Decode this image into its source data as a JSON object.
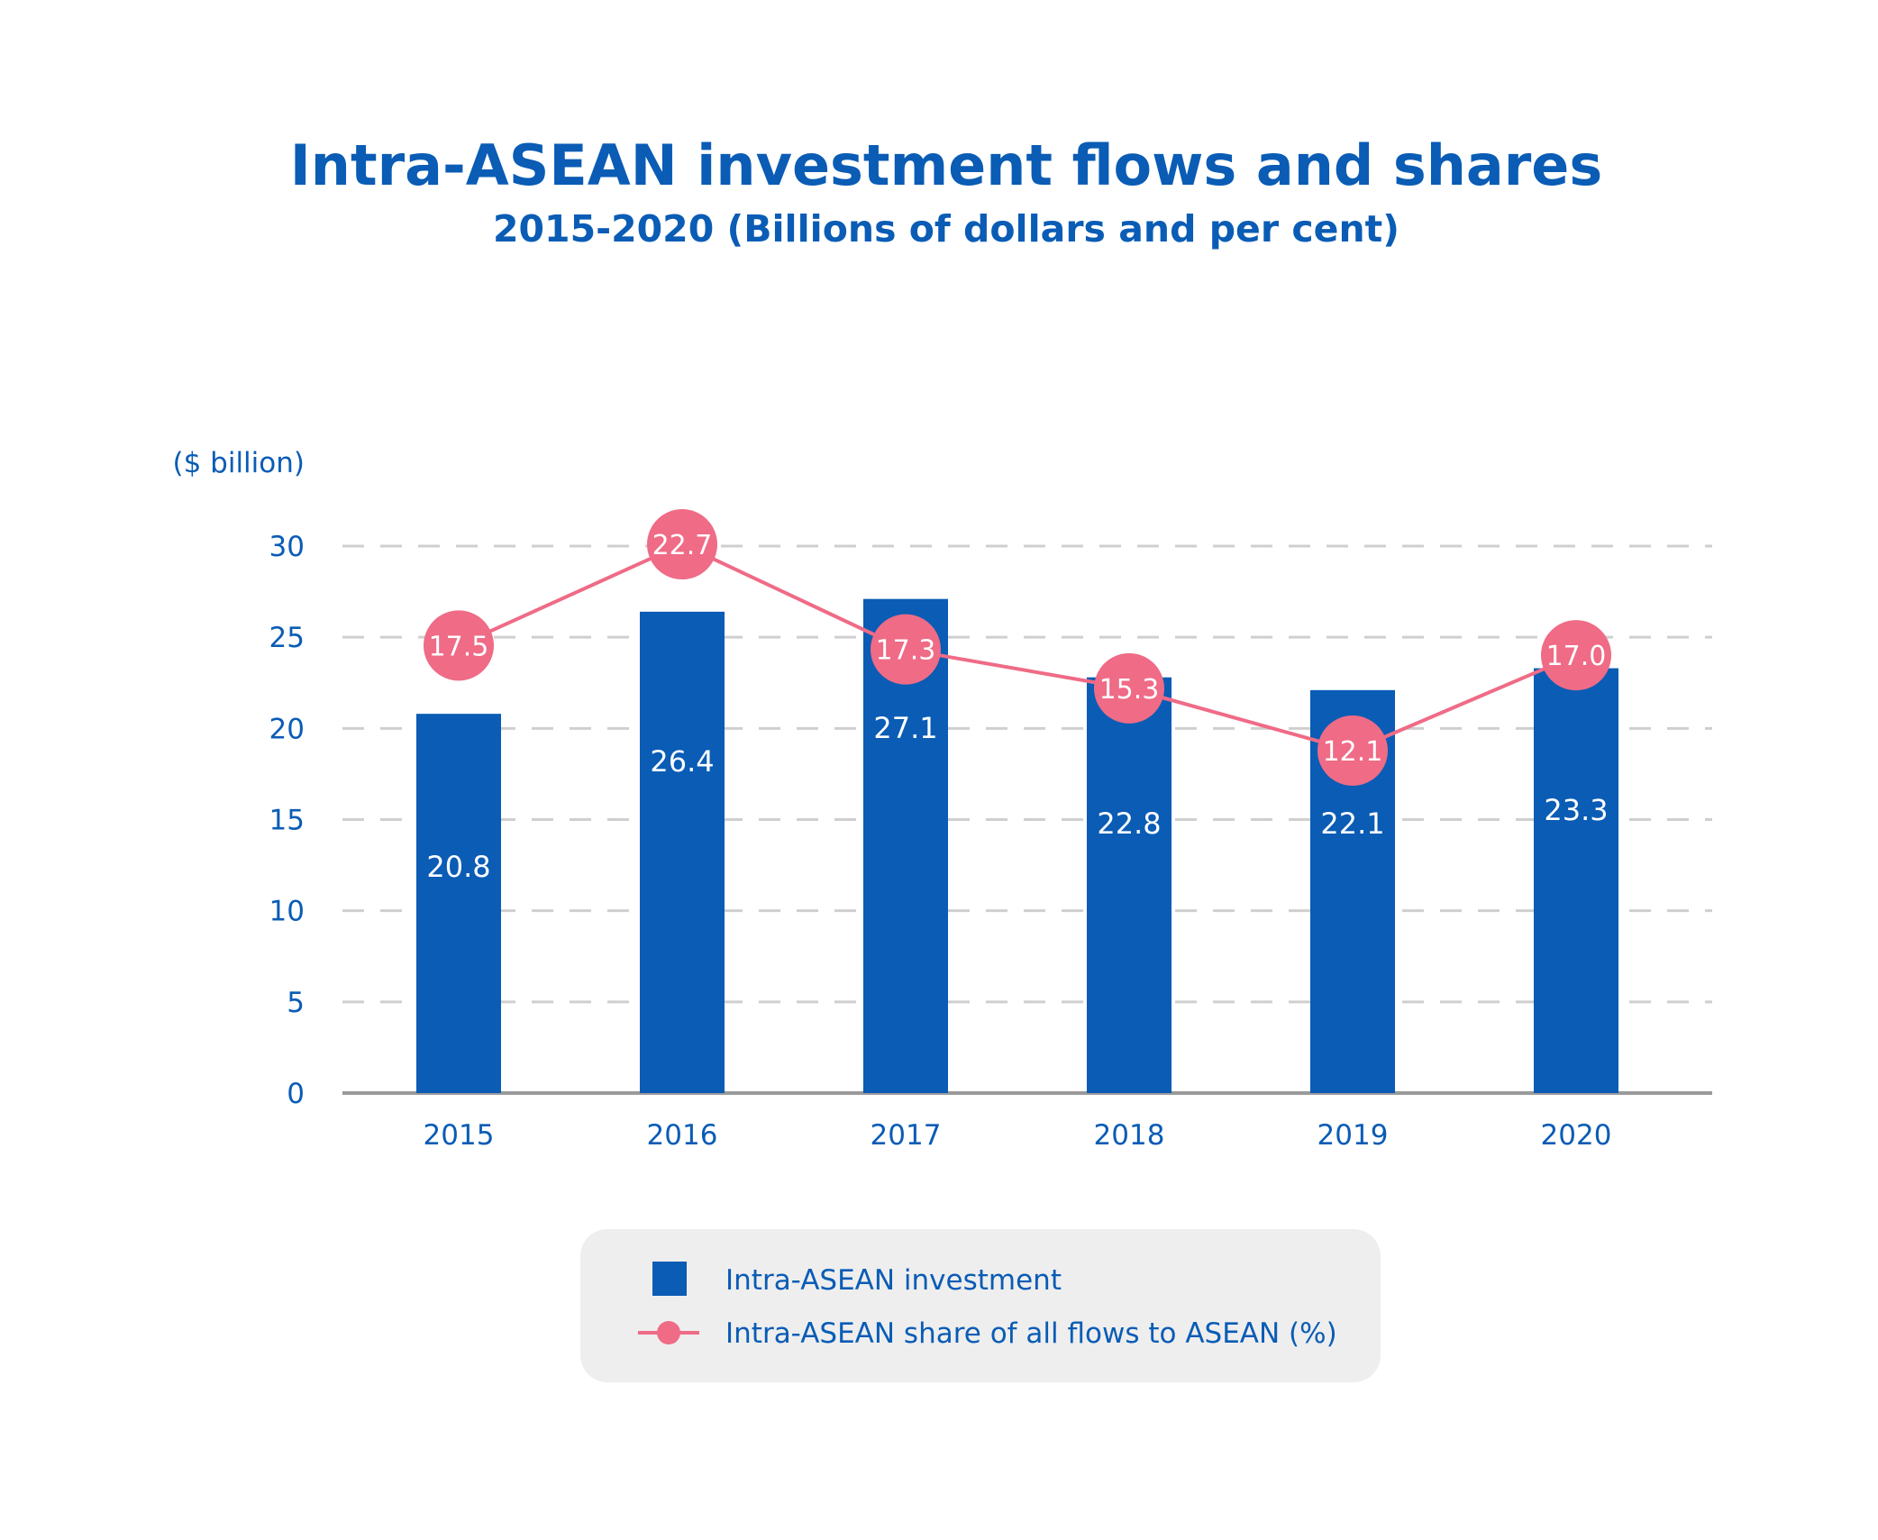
{
  "colors": {
    "bar": "#0a5cb5",
    "line": "#ef6b86",
    "text": "#0a5cb5",
    "grid": "#cfcfcf",
    "axis": "#9a9a9a",
    "legend_bg": "#eeeeee"
  },
  "chart_data": {
    "type": "bar",
    "title": "Intra-ASEAN investment flows and shares",
    "subtitle": "2015-2020 (Billions of dollars and per cent)",
    "ylabel": "($ billion)",
    "xlabel": "",
    "categories": [
      "2015",
      "2016",
      "2017",
      "2018",
      "2019",
      "2020"
    ],
    "ylim": [
      0,
      30
    ],
    "yticks": [
      0,
      5,
      10,
      15,
      20,
      25,
      30
    ],
    "grid": true,
    "legend_position": "bottom",
    "series": [
      {
        "name": "Intra-ASEAN investment",
        "type": "bar",
        "values": [
          20.8,
          26.4,
          27.1,
          22.8,
          22.1,
          23.3
        ],
        "labels": [
          "20.8",
          "26.4",
          "27.1",
          "22.8",
          "22.1",
          "23.3"
        ]
      },
      {
        "name": "Intra-ASEAN share of all flows to ASEAN (%)",
        "type": "line",
        "values": [
          17.5,
          22.7,
          17.3,
          15.3,
          12.1,
          17.0
        ],
        "labels": [
          "17.5",
          "22.7",
          "17.3",
          "15.3",
          "12.1",
          "17.0"
        ]
      }
    ]
  }
}
